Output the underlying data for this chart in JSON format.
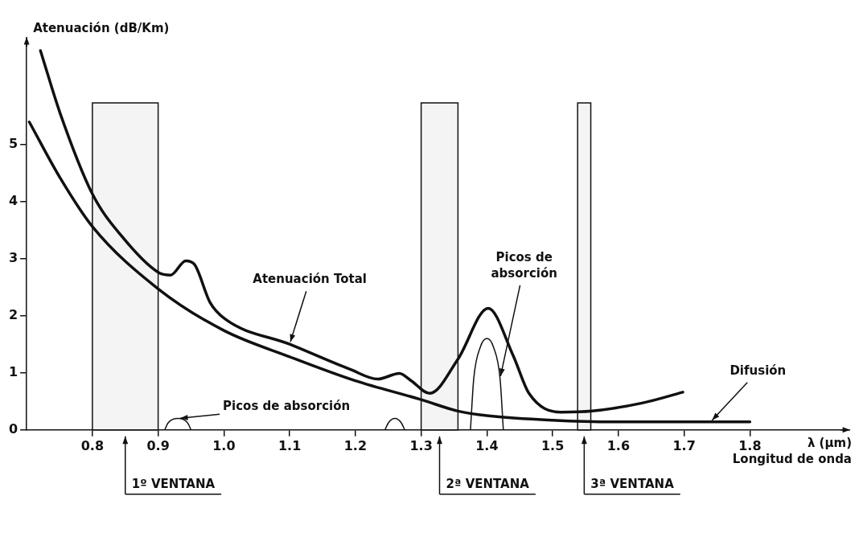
{
  "chart_data": {
    "type": "line",
    "ylabel": "Atenuación (dB/Km)",
    "xlabel": "λ (µm)",
    "xlim": [
      0.7,
      1.95
    ],
    "ylim": [
      0,
      6.85
    ],
    "xticks": [
      0.8,
      0.9,
      {
        "value": 1,
        "label": "1.0"
      },
      1.1,
      1.2,
      1.3,
      1.4,
      1.5,
      1.6,
      1.7,
      1.8
    ],
    "yticks": [
      0,
      1,
      2,
      3,
      4,
      5
    ],
    "series": [
      {
        "color": "#111111",
        "x": [
          0.721,
          0.751,
          0.8,
          0.844,
          0.9,
          0.919,
          0.942,
          0.955,
          0.979,
          1.002,
          1.1,
          1.192,
          1.234,
          1.267,
          1.285,
          1.313,
          1.356,
          1.402,
          1.44,
          1.464,
          1.513,
          1.56,
          1.636,
          1.698
        ],
        "values": [
          6.64,
          5.54,
          4.13,
          3.4,
          2.76,
          2.71,
          2.96,
          2.9,
          2.23,
          1.94,
          1.5,
          1.06,
          0.89,
          0.99,
          0.86,
          0.64,
          1.24,
          2.13,
          1.3,
          0.64,
          0.31,
          0.33,
          0.47,
          0.66
        ]
      },
      {
        "color": "#111111",
        "x": [
          0.704,
          0.751,
          0.8,
          0.9,
          1.0,
          1.1,
          1.2,
          1.3,
          1.356,
          1.4,
          1.5,
          1.6,
          1.74,
          1.8
        ],
        "values": [
          5.39,
          4.41,
          3.56,
          2.47,
          1.74,
          1.28,
          0.86,
          0.53,
          0.33,
          0.25,
          0.17,
          0.14,
          0.14,
          0.14
        ]
      },
      {
        "color": "#111111",
        "x": [
          0.91,
          0.915,
          0.93,
          0.945,
          0.95,
          0.96,
          1.245,
          1.25,
          1.26,
          1.27,
          1.275,
          1.3,
          1.375,
          1.38,
          1.39,
          1.4,
          1.41,
          1.42,
          1.425
        ],
        "values": [
          0,
          0.12,
          0.2,
          0.12,
          0,
          null,
          0,
          0.12,
          0.2,
          0.12,
          0,
          null,
          0,
          0.9,
          1.45,
          1.6,
          1.45,
          0.9,
          0
        ]
      }
    ],
    "bands": [
      {
        "axis": "x",
        "from": 0.8,
        "to": 0.9,
        "label": "1º VENTANA",
        "color": "#f4f4f4"
      },
      {
        "axis": "x",
        "from": 1.3,
        "to": 1.356,
        "label": "2ª VENTANA",
        "color": "#f4f4f4"
      },
      {
        "axis": "x",
        "from": 1.538,
        "to": 1.558,
        "label": "3ª VENTANA",
        "color": "#f4f4f4"
      }
    ],
    "annotations": [
      {
        "text": "Atenuación Total",
        "x": 1.1,
        "y": 1.5
      },
      {
        "text": "Picos de absorción",
        "x": 0.93,
        "y": 0.2
      },
      {
        "text": "Picos de absorción",
        "x": 1.42,
        "y": 0.9
      },
      {
        "text": "Difusión",
        "x": 1.74,
        "y": 0.14
      },
      "Longitud de onda"
    ],
    "grid": false,
    "legend": false,
    "marker": "none",
    "line_style": "solid"
  }
}
